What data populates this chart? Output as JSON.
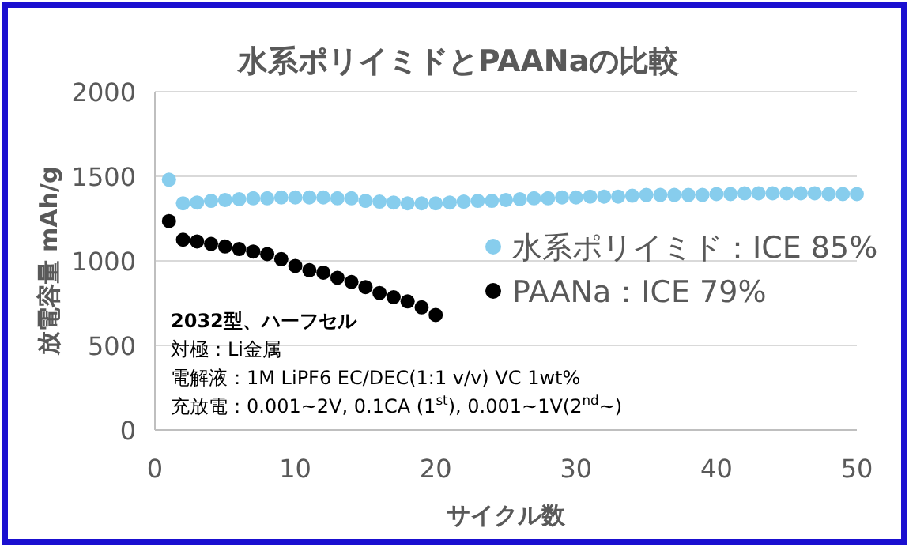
{
  "chart_data": {
    "type": "scatter",
    "title": "水系ポリイミドとPAANaの比較",
    "xlabel": "サイクル数",
    "ylabel": "放電容量 mAh/g",
    "xlim": [
      0,
      50
    ],
    "xticks": [
      0,
      10,
      20,
      30,
      40,
      50
    ],
    "ylim": [
      0,
      2000
    ],
    "yticks": [
      0,
      500,
      1000,
      1500,
      2000
    ],
    "grid": "y",
    "legend": "right",
    "marker": "circle",
    "series": [
      {
        "name": "水系ポリイミド：ICE 85%",
        "color": "#87cded",
        "x": [
          1,
          2,
          3,
          4,
          5,
          6,
          7,
          8,
          9,
          10,
          11,
          12,
          13,
          14,
          15,
          16,
          17,
          18,
          19,
          20,
          21,
          22,
          23,
          24,
          25,
          26,
          27,
          28,
          29,
          30,
          31,
          32,
          33,
          34,
          35,
          36,
          37,
          38,
          39,
          40,
          41,
          42,
          43,
          44,
          45,
          46,
          47,
          48,
          49,
          50
        ],
        "values": [
          1480,
          1340,
          1345,
          1355,
          1360,
          1365,
          1370,
          1370,
          1375,
          1375,
          1375,
          1375,
          1370,
          1370,
          1355,
          1350,
          1345,
          1340,
          1340,
          1340,
          1345,
          1350,
          1355,
          1355,
          1360,
          1365,
          1370,
          1370,
          1375,
          1375,
          1380,
          1380,
          1380,
          1385,
          1390,
          1390,
          1390,
          1390,
          1390,
          1395,
          1395,
          1400,
          1400,
          1400,
          1400,
          1400,
          1400,
          1395,
          1395,
          1395
        ]
      },
      {
        "name": "PAANa：ICE 79%",
        "color": "#000000",
        "x": [
          1,
          2,
          3,
          4,
          5,
          6,
          7,
          8,
          9,
          10,
          11,
          12,
          13,
          14,
          15,
          16,
          17,
          18,
          19,
          20
        ],
        "values": [
          1235,
          1125,
          1115,
          1100,
          1085,
          1070,
          1055,
          1040,
          1010,
          970,
          945,
          930,
          900,
          875,
          845,
          810,
          785,
          760,
          725,
          680
        ]
      }
    ],
    "annotations": [
      "**2032型、ハーフセル**",
      "対極：Li金属",
      "電解液：1M LiPF6 EC/DEC(1:1 v/v) VC 1wt%",
      "充放電：0.001~2V, 0.1CA (1$^{st}$), 0.001~1V(2$^{nd}$~)"
    ]
  }
}
